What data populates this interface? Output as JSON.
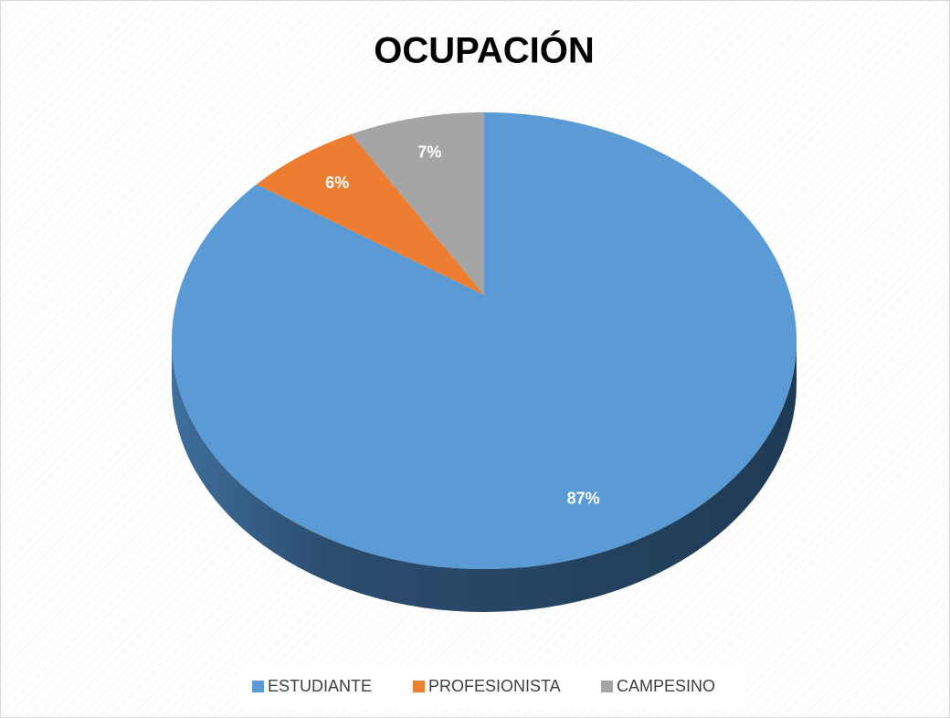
{
  "chart_data": {
    "type": "pie",
    "title": "OCUPACIÓN",
    "categories": [
      "ESTUDIANTE",
      "PROFESIONISTA",
      "CAMPESINO"
    ],
    "values": [
      87,
      6,
      7
    ],
    "value_labels": [
      "87%",
      "6%",
      "7%"
    ],
    "colors": [
      "#5b9bd5",
      "#ed7d31",
      "#a5a5a5"
    ],
    "legend": "bottom"
  }
}
